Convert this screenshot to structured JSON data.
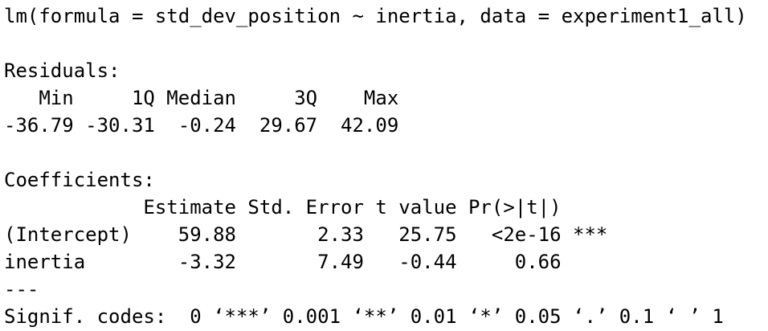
{
  "output": {
    "call": "lm(formula = std_dev_position ~ inertia, data = experiment1_all)",
    "residuals_heading": "Residuals:",
    "residuals_header": "   Min     1Q Median     3Q    Max ",
    "residuals_values": "-36.79 -30.31  -0.24  29.67  42.09 ",
    "coefficients_heading": "Coefficients:",
    "coefficients_header": "            Estimate Std. Error t value Pr(>|t|)    ",
    "coefficients_rows": [
      "(Intercept)    59.88       2.33   25.75   <2e-16 ***",
      "inertia        -3.32       7.49   -0.44     0.66    "
    ],
    "separator": "---",
    "signif_codes": "Signif. codes:  0 ‘***’ 0.001 ‘**’ 0.01 ‘*’ 0.05 ‘.’ 0.1 ‘ ’ 1"
  }
}
